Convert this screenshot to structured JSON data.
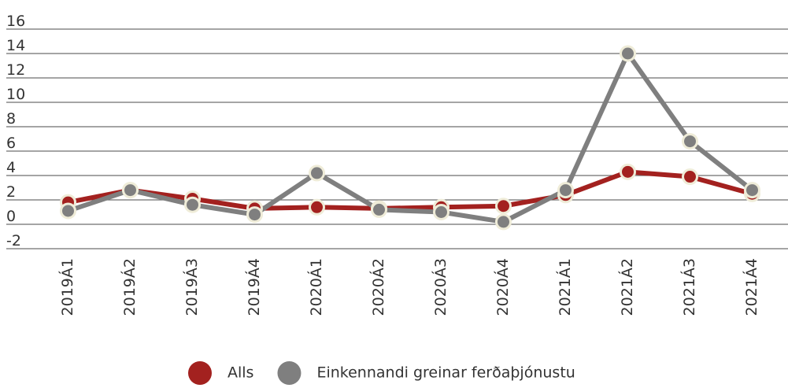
{
  "chart_data": {
    "type": "line",
    "categories": [
      "2019Á1",
      "2019Á2",
      "2019Á3",
      "2019Á4",
      "2020Á1",
      "2020Á2",
      "2020Á3",
      "2020Á4",
      "2021Á1",
      "2021Á2",
      "2021Á3",
      "2021Á4"
    ],
    "series": [
      {
        "name": "Alls",
        "color": "#a3211f",
        "values": [
          1.8,
          2.8,
          2.1,
          1.3,
          1.4,
          1.3,
          1.4,
          1.5,
          2.4,
          4.3,
          3.9,
          2.5
        ]
      },
      {
        "name": "Einkennandi greinar ferðaþjónustu",
        "color": "#7f7f7f",
        "values": [
          1.1,
          2.8,
          1.6,
          0.8,
          4.2,
          1.2,
          1.0,
          0.2,
          2.8,
          14.0,
          6.8,
          2.8
        ]
      }
    ],
    "ylim": [
      -2,
      16
    ],
    "yticks": [
      -2,
      0,
      2,
      4,
      6,
      8,
      10,
      12,
      14,
      16
    ],
    "grid": true,
    "legend": "bottom"
  }
}
